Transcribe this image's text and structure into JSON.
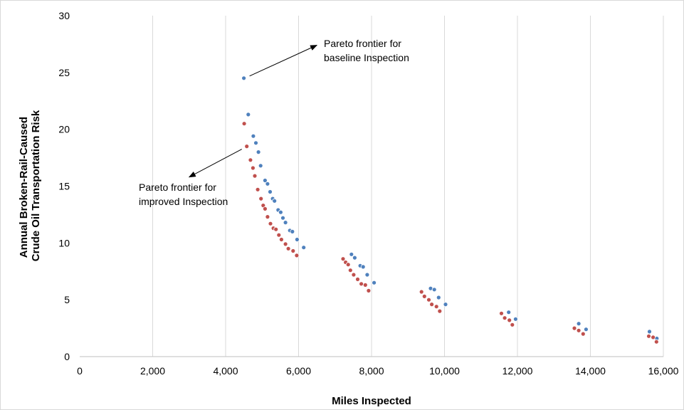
{
  "chart_data": {
    "type": "scatter",
    "xlabel": "Miles Inspected",
    "ylabel_lines": [
      "Annual Broken-Rail-Caused",
      "Crude Oil Transportation Risk"
    ],
    "xlim": [
      0,
      16000
    ],
    "ylim": [
      0,
      30
    ],
    "x_ticks": [
      0,
      2000,
      4000,
      6000,
      8000,
      10000,
      12000,
      14000,
      16000
    ],
    "x_tick_labels": [
      "0",
      "2,000",
      "4,000",
      "6,000",
      "8,000",
      "10,000",
      "12,000",
      "14,000",
      "16,000"
    ],
    "y_ticks": [
      0,
      5,
      10,
      15,
      20,
      25,
      30
    ],
    "y_tick_labels": [
      "0",
      "5",
      "10",
      "15",
      "20",
      "25",
      "30"
    ],
    "grid": "vertical",
    "series": [
      {
        "color": "#4f81bd",
        "points": [
          [
            4500,
            24.5
          ],
          [
            4620,
            21.3
          ],
          [
            4760,
            19.4
          ],
          [
            4830,
            18.8
          ],
          [
            4900,
            18.0
          ],
          [
            4960,
            16.8
          ],
          [
            5080,
            15.5
          ],
          [
            5150,
            15.2
          ],
          [
            5220,
            14.5
          ],
          [
            5290,
            13.9
          ],
          [
            5340,
            13.7
          ],
          [
            5440,
            12.9
          ],
          [
            5510,
            12.7
          ],
          [
            5570,
            12.2
          ],
          [
            5640,
            11.8
          ],
          [
            5760,
            11.1
          ],
          [
            5830,
            11.0
          ],
          [
            5960,
            10.3
          ],
          [
            6140,
            9.6
          ],
          [
            7450,
            9.0
          ],
          [
            7540,
            8.7
          ],
          [
            7690,
            8.0
          ],
          [
            7770,
            7.9
          ],
          [
            7880,
            7.2
          ],
          [
            8070,
            6.5
          ],
          [
            9620,
            6.0
          ],
          [
            9720,
            5.9
          ],
          [
            9840,
            5.2
          ],
          [
            10030,
            4.6
          ],
          [
            11760,
            3.9
          ],
          [
            11950,
            3.3
          ],
          [
            13680,
            2.9
          ],
          [
            13880,
            2.4
          ],
          [
            15620,
            2.2
          ],
          [
            15820,
            1.6
          ]
        ]
      },
      {
        "color": "#c0504d",
        "points": [
          [
            4510,
            20.5
          ],
          [
            4580,
            18.5
          ],
          [
            4680,
            17.3
          ],
          [
            4750,
            16.6
          ],
          [
            4800,
            15.9
          ],
          [
            4880,
            14.7
          ],
          [
            4970,
            13.9
          ],
          [
            5030,
            13.3
          ],
          [
            5080,
            13.0
          ],
          [
            5150,
            12.3
          ],
          [
            5230,
            11.7
          ],
          [
            5310,
            11.3
          ],
          [
            5380,
            11.2
          ],
          [
            5460,
            10.7
          ],
          [
            5530,
            10.3
          ],
          [
            5640,
            9.9
          ],
          [
            5720,
            9.5
          ],
          [
            5850,
            9.3
          ],
          [
            5950,
            8.9
          ],
          [
            7220,
            8.6
          ],
          [
            7290,
            8.3
          ],
          [
            7360,
            8.1
          ],
          [
            7420,
            7.6
          ],
          [
            7510,
            7.2
          ],
          [
            7620,
            6.8
          ],
          [
            7720,
            6.4
          ],
          [
            7830,
            6.3
          ],
          [
            7920,
            5.8
          ],
          [
            9370,
            5.7
          ],
          [
            9450,
            5.3
          ],
          [
            9570,
            5.0
          ],
          [
            9650,
            4.6
          ],
          [
            9780,
            4.4
          ],
          [
            9870,
            4.0
          ],
          [
            11560,
            3.8
          ],
          [
            11650,
            3.4
          ],
          [
            11780,
            3.2
          ],
          [
            11860,
            2.8
          ],
          [
            13560,
            2.5
          ],
          [
            13680,
            2.3
          ],
          [
            13800,
            2.0
          ],
          [
            15600,
            1.8
          ],
          [
            15720,
            1.7
          ],
          [
            15810,
            1.3
          ]
        ]
      }
    ],
    "annotations": [
      {
        "lines": [
          "Pareto frontier for",
          "baseline Inspection"
        ],
        "arrow_from": [
          4500,
          24.5
        ],
        "arrow_to": [
          6500,
          27.4
        ]
      },
      {
        "lines": [
          "Pareto frontier for",
          "improved Inspection"
        ],
        "arrow_from": [
          4580,
          18.5
        ],
        "arrow_to": [
          3000,
          15.8
        ]
      }
    ]
  }
}
